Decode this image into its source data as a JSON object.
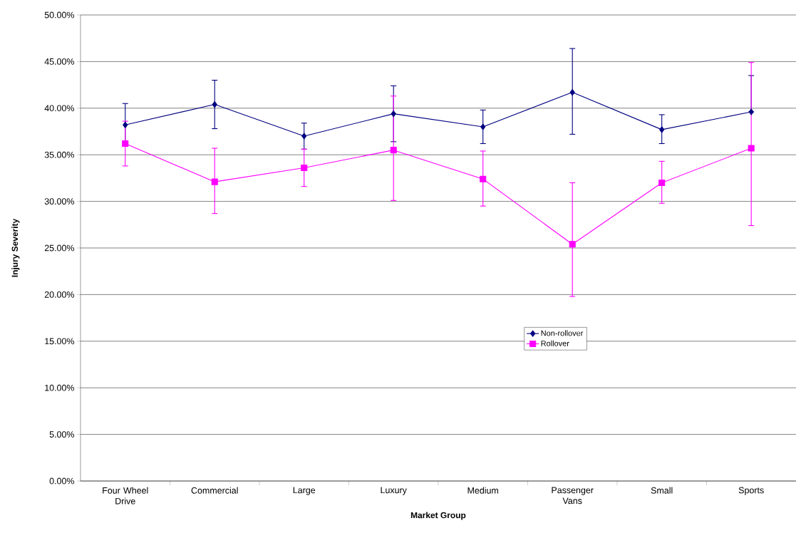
{
  "chart_data": {
    "type": "line",
    "xlabel": "Market Group",
    "ylabel": "Injury Severity",
    "categories": [
      "Four Wheel Drive",
      "Commercial",
      "Large",
      "Luxury",
      "Medium",
      "Passenger Vans",
      "Small",
      "Sports"
    ],
    "series": [
      {
        "name": "Non-rollover",
        "color": "#000080",
        "marker": "diamond",
        "values": [
          38.2,
          40.4,
          37.0,
          39.4,
          38.0,
          41.7,
          37.7,
          39.6
        ],
        "errors": [
          [
            36.0,
            40.5
          ],
          [
            37.8,
            43.0
          ],
          [
            35.6,
            38.4
          ],
          [
            36.4,
            42.4
          ],
          [
            36.2,
            39.8
          ],
          [
            37.2,
            46.4
          ],
          [
            36.2,
            39.3
          ],
          [
            39.6,
            43.5
          ]
        ]
      },
      {
        "name": "Rollover",
        "color": "#ff00ff",
        "marker": "square",
        "values": [
          36.2,
          32.1,
          33.6,
          35.5,
          32.4,
          25.4,
          32.0,
          35.7
        ],
        "errors": [
          [
            33.8,
            38.6
          ],
          [
            28.7,
            35.7
          ],
          [
            31.6,
            35.6
          ],
          [
            30.1,
            41.3
          ],
          [
            29.5,
            35.4
          ],
          [
            19.8,
            32.0
          ],
          [
            29.8,
            34.3
          ],
          [
            27.4,
            44.9
          ]
        ]
      }
    ],
    "ylim": [
      0,
      50
    ],
    "yticks": [
      {
        "value": 0,
        "label": "0.00%"
      },
      {
        "value": 5,
        "label": "5.00%"
      },
      {
        "value": 10,
        "label": "10.00%"
      },
      {
        "value": 15,
        "label": "15.00%"
      },
      {
        "value": 20,
        "label": "20.00%"
      },
      {
        "value": 25,
        "label": "25.00%"
      },
      {
        "value": 30,
        "label": "30.00%"
      },
      {
        "value": 35,
        "label": "35.00%"
      },
      {
        "value": 40,
        "label": "40.00%"
      },
      {
        "value": 45,
        "label": "45.00%"
      },
      {
        "value": 50,
        "label": "50.00%"
      }
    ],
    "grid": "y",
    "legend": "right",
    "line_style": "solid"
  }
}
